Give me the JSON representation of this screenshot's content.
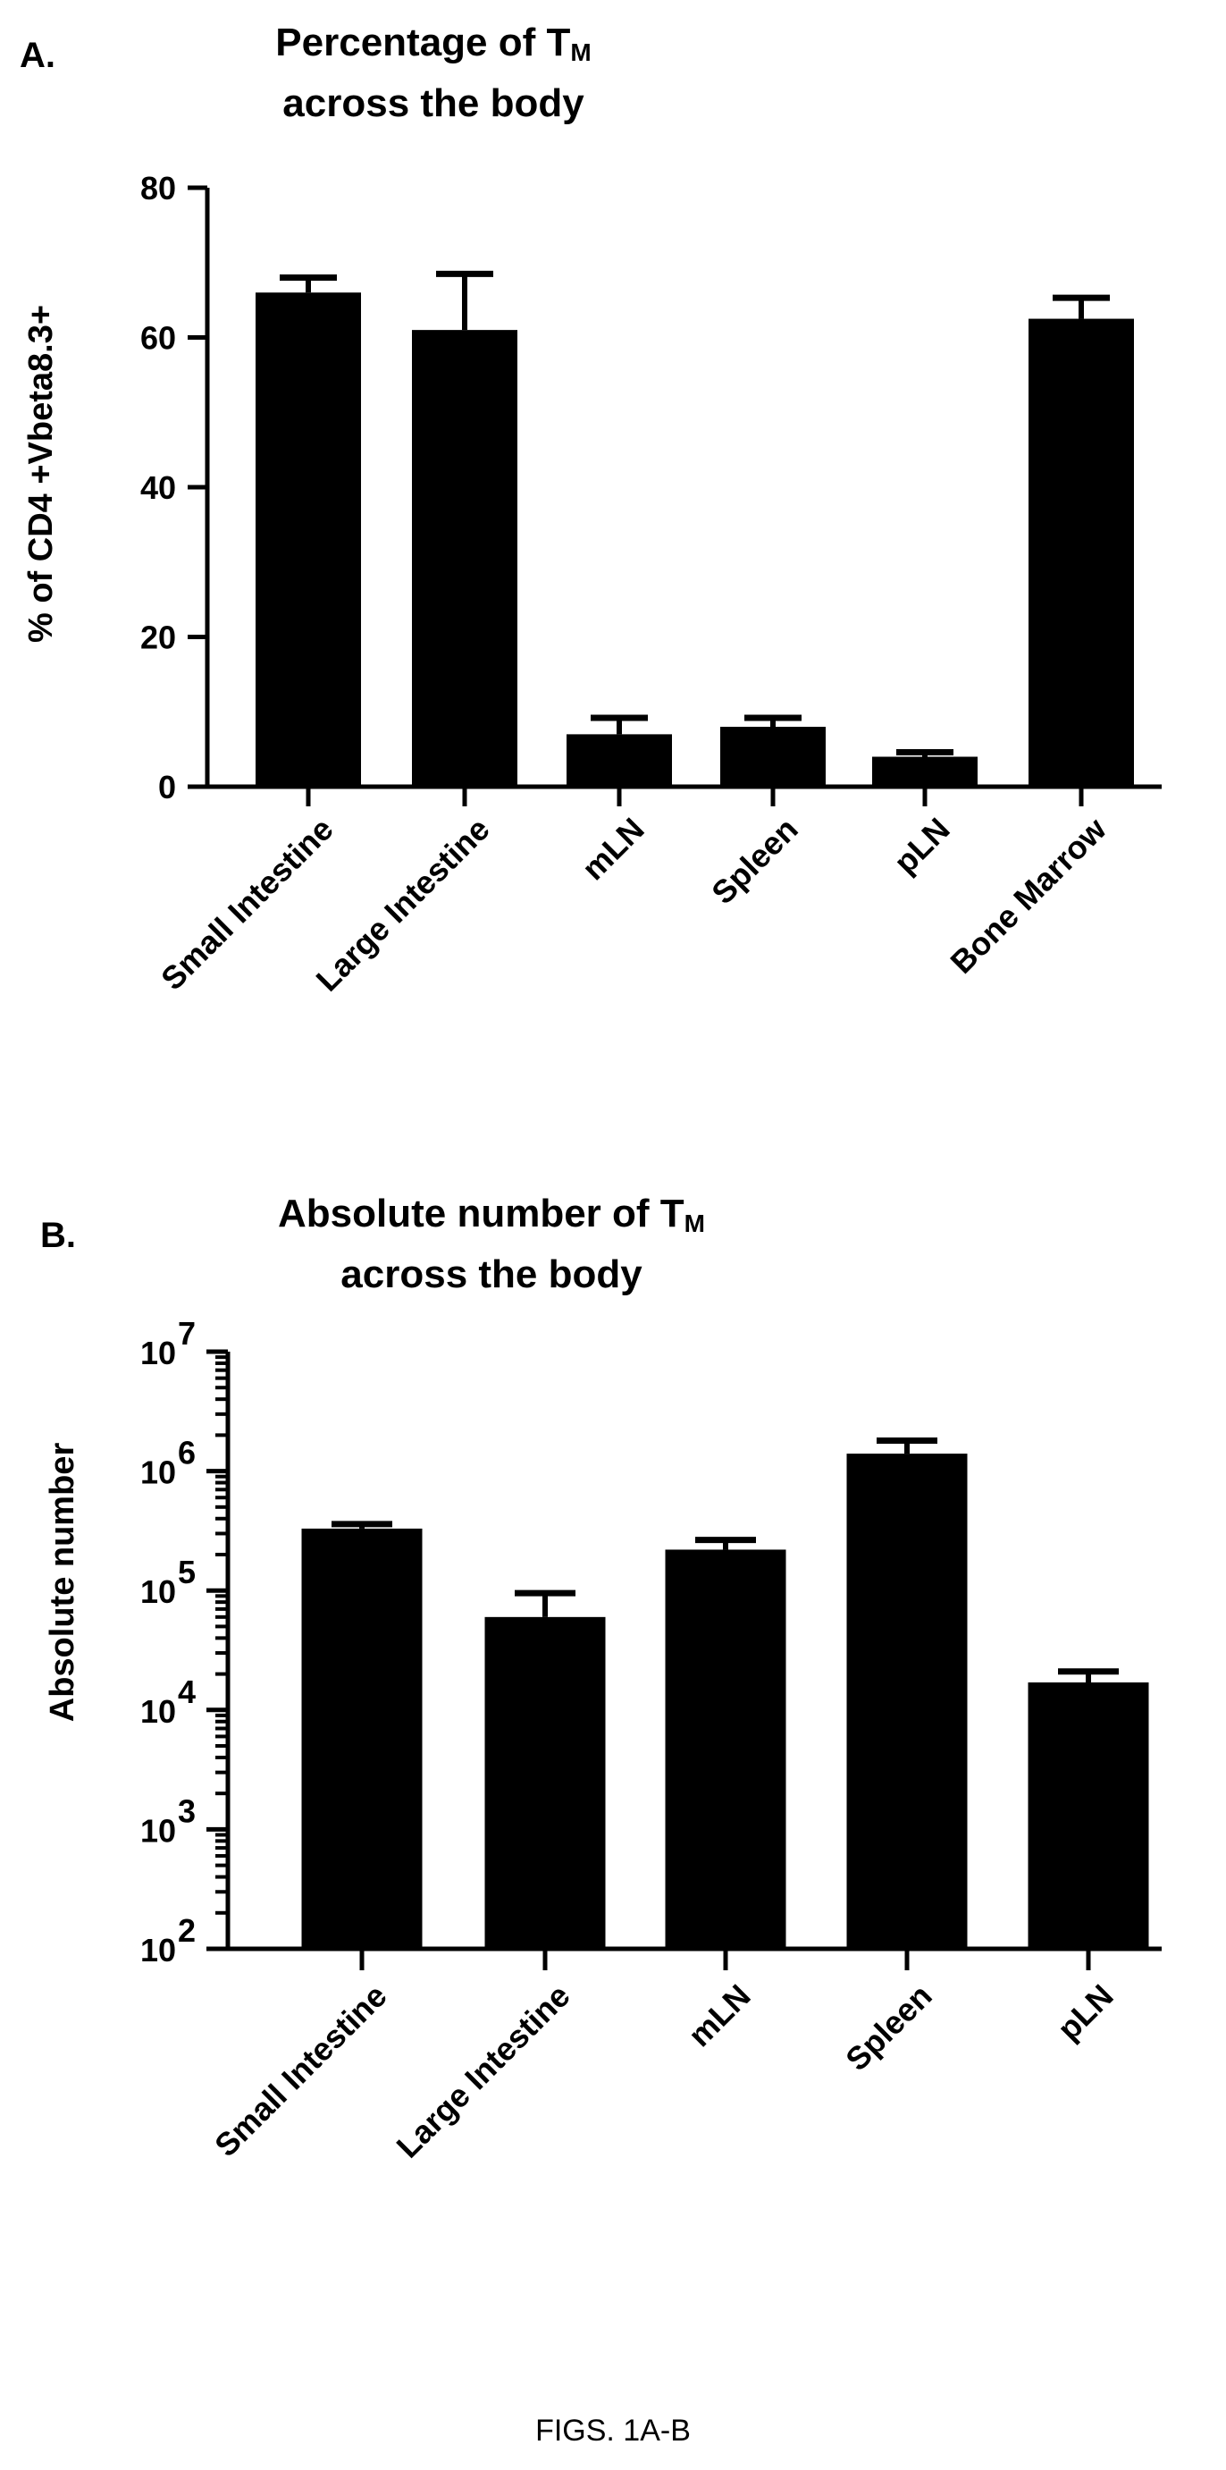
{
  "caption": "FIGS. 1A-B",
  "chart_data": [
    {
      "panel": "A.",
      "type": "bar",
      "title_line1": "Percentage of T",
      "title_sub": "M",
      "title_line2": "across the body",
      "ylabel": "% of CD4 +Vbeta8.3+",
      "xlabel": "",
      "ylim": [
        0,
        80
      ],
      "yticks": [
        0,
        20,
        40,
        60,
        80
      ],
      "categories": [
        "Small Intestine",
        "Large Intestine",
        "mLN",
        "Spleen",
        "pLN",
        "Bone Marrow"
      ],
      "values": [
        66,
        61,
        7,
        8,
        4,
        62.5
      ],
      "errors": [
        2,
        7.5,
        2.2,
        1.2,
        0.6,
        2.8
      ],
      "bar_color": "#000000",
      "grid": false
    },
    {
      "panel": "B.",
      "type": "bar",
      "title_line1": "Absolute number of T",
      "title_sub": "M",
      "title_line2": "across the body",
      "ylabel": "Absolute number",
      "xlabel": "",
      "yscale": "log",
      "ylim": [
        100,
        10000000
      ],
      "ytick_labels": [
        {
          "base": "10",
          "exp": "2"
        },
        {
          "base": "10",
          "exp": "3"
        },
        {
          "base": "10",
          "exp": "4"
        },
        {
          "base": "10",
          "exp": "5"
        },
        {
          "base": "10",
          "exp": "6"
        },
        {
          "base": "10",
          "exp": "7"
        }
      ],
      "categories": [
        "Small Intestine",
        "Large Intestine",
        "mLN",
        "Spleen",
        "pLN"
      ],
      "values": [
        330000,
        60000,
        220000,
        1400000,
        17000
      ],
      "errors": [
        30000,
        35000,
        45000,
        400000,
        4000
      ],
      "bar_color": "#000000",
      "grid": false
    }
  ]
}
